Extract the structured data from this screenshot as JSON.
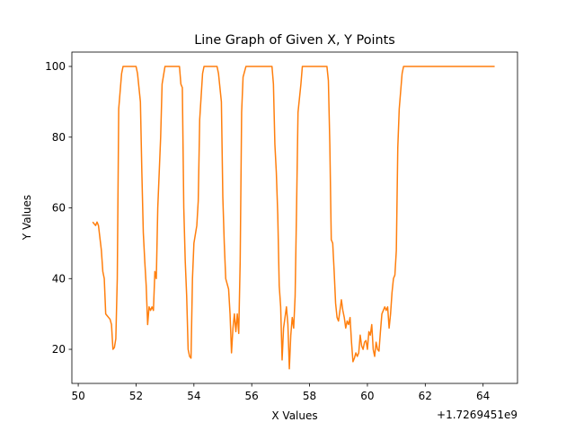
{
  "chart_data": {
    "type": "line",
    "title": "Line Graph of Given X, Y Points",
    "xlabel": "X Values",
    "ylabel": "Y Values",
    "x_offset_text": "+1.7269451e9",
    "x": [
      50.5,
      50.6,
      50.65,
      50.7,
      50.8,
      50.85,
      50.9,
      50.95,
      51.0,
      51.1,
      51.15,
      51.2,
      51.25,
      51.3,
      51.35,
      51.4,
      51.5,
      51.55,
      52.0,
      52.05,
      52.15,
      52.2,
      52.25,
      52.3,
      52.35,
      52.4,
      52.45,
      52.5,
      52.55,
      52.6,
      52.65,
      52.7,
      52.75,
      52.85,
      52.9,
      53.0,
      53.5,
      53.55,
      53.6,
      53.65,
      53.7,
      53.75,
      53.8,
      53.85,
      53.9,
      53.95,
      54.0,
      54.1,
      54.15,
      54.2,
      54.3,
      54.35,
      54.8,
      54.85,
      54.95,
      55.0,
      55.05,
      55.1,
      55.2,
      55.25,
      55.3,
      55.35,
      55.4,
      55.45,
      55.5,
      55.55,
      55.6,
      55.65,
      55.7,
      55.8,
      56.7,
      56.75,
      56.8,
      56.85,
      56.9,
      56.95,
      57.0,
      57.05,
      57.1,
      57.2,
      57.25,
      57.3,
      57.35,
      57.4,
      57.45,
      57.5,
      57.55,
      57.6,
      57.7,
      57.75,
      58.6,
      58.65,
      58.7,
      58.75,
      58.8,
      58.85,
      58.9,
      58.95,
      59.0,
      59.05,
      59.1,
      59.15,
      59.2,
      59.25,
      59.3,
      59.35,
      59.4,
      59.45,
      59.5,
      59.55,
      59.6,
      59.65,
      59.7,
      59.75,
      59.8,
      59.85,
      59.9,
      59.95,
      60.0,
      60.05,
      60.1,
      60.15,
      60.2,
      60.25,
      60.3,
      60.35,
      60.4,
      60.45,
      60.5,
      60.55,
      60.6,
      60.65,
      60.7,
      60.75,
      60.8,
      60.85,
      60.9,
      60.95,
      61.0,
      61.05,
      61.1,
      61.2,
      61.25,
      64.4
    ],
    "series": [
      {
        "color": "#ff7f0e",
        "values": [
          56,
          55,
          56,
          55,
          48,
          42,
          40,
          30,
          29.5,
          28.5,
          27,
          20,
          20.5,
          23,
          40,
          88,
          98,
          100,
          100,
          98,
          90,
          70,
          53,
          45,
          38,
          27,
          32,
          31,
          32,
          31,
          42,
          40,
          60,
          80,
          95,
          100,
          100,
          95,
          94,
          60,
          45,
          35,
          20,
          18,
          17.5,
          40,
          50,
          55,
          62,
          85,
          98,
          100,
          100,
          98,
          90,
          63,
          50,
          40,
          37,
          30,
          19,
          26,
          30,
          25,
          30,
          24.5,
          45,
          87,
          97,
          100,
          100,
          95,
          78,
          70,
          58,
          38,
          32,
          17,
          26,
          32,
          27,
          14.5,
          24,
          29,
          26,
          35,
          60,
          87,
          95,
          100,
          100,
          96,
          78,
          51,
          50,
          42,
          33,
          29,
          28,
          31,
          34,
          31,
          29,
          26,
          28,
          27,
          29,
          22,
          16.5,
          17.5,
          19,
          18,
          19,
          24,
          21,
          20,
          22,
          22.5,
          20,
          25,
          24,
          27,
          20,
          18,
          22,
          20,
          19.5,
          25,
          30,
          31,
          32,
          31,
          32,
          26,
          30,
          36,
          40,
          41,
          48,
          77,
          88,
          98,
          100,
          100
        ]
      }
    ],
    "xlim": [
      49.78,
      65.19
    ],
    "ylim": [
      10.36,
      104.06
    ],
    "xticks": [
      50,
      52,
      54,
      56,
      58,
      60,
      62,
      64
    ],
    "yticks": [
      20,
      40,
      60,
      80,
      100
    ],
    "grid": false
  }
}
